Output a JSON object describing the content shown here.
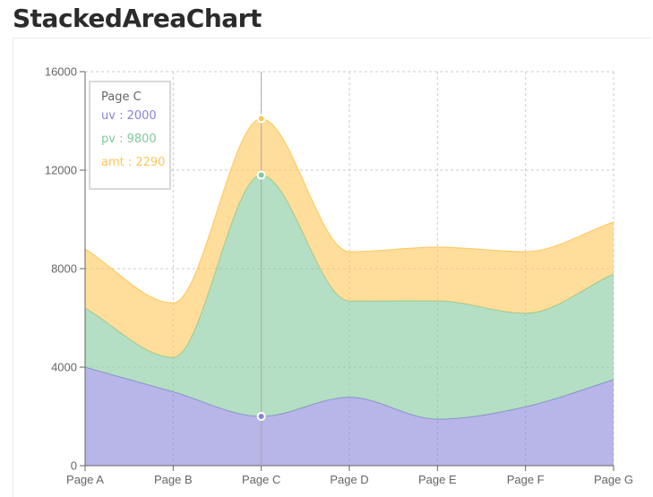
{
  "page": {
    "title": "StackedAreaChart"
  },
  "chart_data": {
    "type": "area",
    "stacked": true,
    "categories": [
      "Page A",
      "Page B",
      "Page C",
      "Page D",
      "Page E",
      "Page F",
      "Page G"
    ],
    "series": [
      {
        "name": "uv",
        "values": [
          4000,
          3000,
          2000,
          2780,
          1890,
          2390,
          3490
        ],
        "color": "#8884d8"
      },
      {
        "name": "pv",
        "values": [
          2400,
          1398,
          9800,
          3908,
          4800,
          3800,
          4300
        ],
        "color": "#82ca9d"
      },
      {
        "name": "amt",
        "values": [
          2400,
          2210,
          2290,
          2000,
          2181,
          2500,
          2100
        ],
        "color": "#ffc658"
      }
    ],
    "yticks": [
      0,
      4000,
      8000,
      12000,
      16000
    ],
    "ylim": [
      0,
      16000
    ],
    "grid": true,
    "active_index": 2,
    "tooltip": {
      "label": "Page C",
      "rows": [
        {
          "text": "uv : 2000",
          "color": "#8884d8"
        },
        {
          "text": "pv : 9800",
          "color": "#82ca9d"
        },
        {
          "text": "amt : 2290",
          "color": "#ffc658"
        }
      ]
    }
  }
}
